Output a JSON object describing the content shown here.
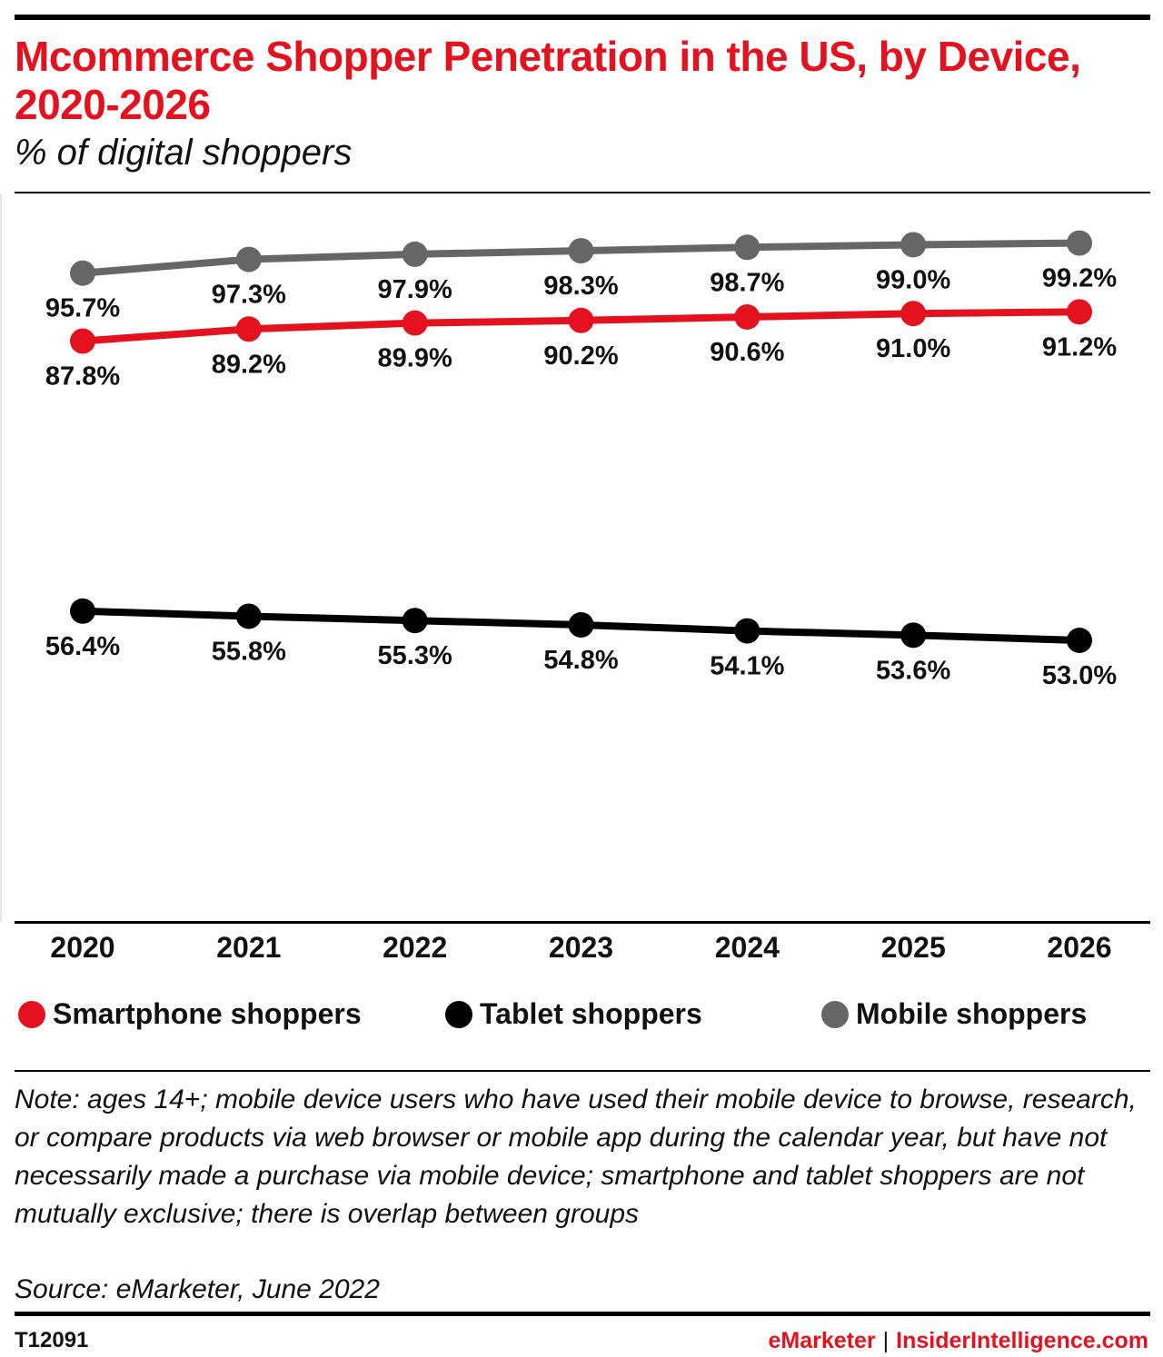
{
  "header": {
    "title": "Mcommerce Shopper Penetration in the US, by Device, 2020-2026",
    "subtitle": "% of digital shoppers"
  },
  "chart_data": {
    "type": "line",
    "title": "Mcommerce Shopper Penetration in the US, by Device, 2020-2026",
    "subtitle": "% of digital shoppers",
    "xlabel": "",
    "ylabel": "",
    "categories": [
      "2020",
      "2021",
      "2022",
      "2023",
      "2024",
      "2025",
      "2026"
    ],
    "series": [
      {
        "name": "Mobile shoppers",
        "color": "#666666",
        "values": [
          95.7,
          97.3,
          97.9,
          98.3,
          98.7,
          99.0,
          99.2
        ],
        "labels": [
          "95.7%",
          "97.3%",
          "97.9%",
          "98.3%",
          "98.7%",
          "99.0%",
          "99.2%"
        ]
      },
      {
        "name": "Smartphone shoppers",
        "color": "#e4121e",
        "values": [
          87.8,
          89.2,
          89.9,
          90.2,
          90.6,
          91.0,
          91.2
        ],
        "labels": [
          "87.8%",
          "89.2%",
          "89.9%",
          "90.2%",
          "90.6%",
          "91.0%",
          "91.2%"
        ]
      },
      {
        "name": "Tablet shoppers",
        "color": "#000000",
        "values": [
          56.4,
          55.8,
          55.3,
          54.8,
          54.1,
          53.6,
          53.0
        ],
        "labels": [
          "56.4%",
          "55.8%",
          "55.3%",
          "54.8%",
          "54.1%",
          "53.6%",
          "53.0%"
        ]
      }
    ],
    "grid": false,
    "legend_position": "bottom",
    "y_axis_visible": false
  },
  "legend": [
    {
      "label": "Smartphone shoppers",
      "color": "#e4121e"
    },
    {
      "label": "Tablet shoppers",
      "color": "#000000"
    },
    {
      "label": "Mobile shoppers",
      "color": "#666666"
    }
  ],
  "footer": {
    "note": "Note: ages 14+; mobile device users who have used their mobile device to browse, research, or compare products via web browser or mobile app during the calendar year, but have not necessarily made a purchase via mobile device; smartphone and tablet shoppers are not mutually exclusive; there is overlap between groups",
    "source": "Source: eMarketer, June 2022",
    "chart_id": "T12091",
    "brand_left": "eMarketer",
    "brand_separator": "|",
    "brand_right": "InsiderIntelligence.com"
  }
}
